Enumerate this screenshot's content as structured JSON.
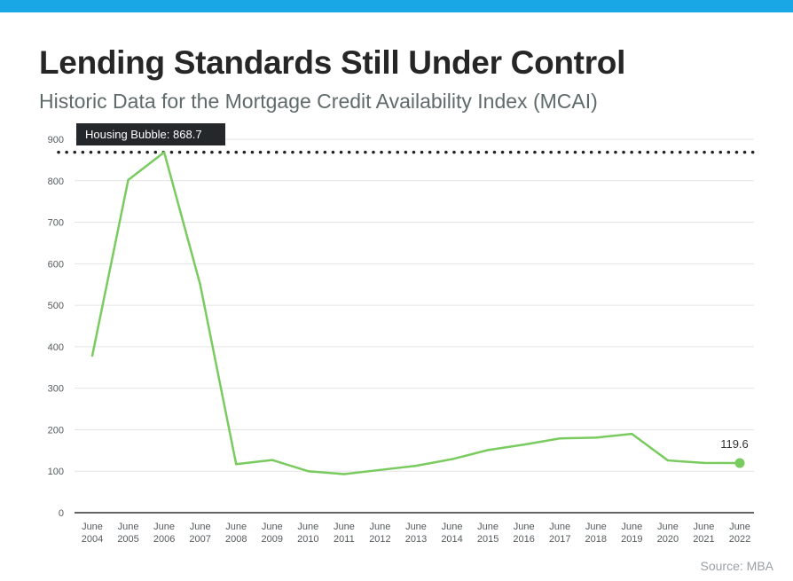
{
  "header": {
    "title": "Lending Standards Still Under Control",
    "subtitle": "Historic Data for the Mortgage Credit Availability Index (MCAI)"
  },
  "footer": {
    "source": "Source: MBA"
  },
  "colors": {
    "top_bar": "#1aa7e6",
    "line": "#7acb5f",
    "callout_bg": "#25282b",
    "grid": "#e4e4e4",
    "axis": "#333333"
  },
  "chart_data": {
    "type": "line",
    "title": "Lending Standards Still Under Control",
    "subtitle": "Historic Data for the Mortgage Credit Availability Index (MCAI)",
    "xlabel": "",
    "ylabel": "",
    "ylim": [
      0,
      900
    ],
    "yticks": [
      0,
      100,
      200,
      300,
      400,
      500,
      600,
      700,
      800,
      900
    ],
    "grid": true,
    "categories": [
      "June 2004",
      "June 2005",
      "June 2006",
      "June 2007",
      "June 2008",
      "June 2009",
      "June 2010",
      "June 2011",
      "June 2012",
      "June 2013",
      "June 2014",
      "June 2015",
      "June 2016",
      "June 2017",
      "June 2018",
      "June 2019",
      "June 2020",
      "June 2021",
      "June 2022"
    ],
    "series": [
      {
        "values": [
          378,
          802,
          868.7,
          550,
          117,
          127,
          100,
          93,
          103,
          113,
          129,
          151,
          164,
          179,
          181,
          190,
          126,
          120,
          119.6
        ]
      }
    ],
    "reference_line": {
      "value": 868.7,
      "label": "Housing Bubble: 868.7",
      "style": "dotted"
    },
    "end_label": "119.6"
  }
}
